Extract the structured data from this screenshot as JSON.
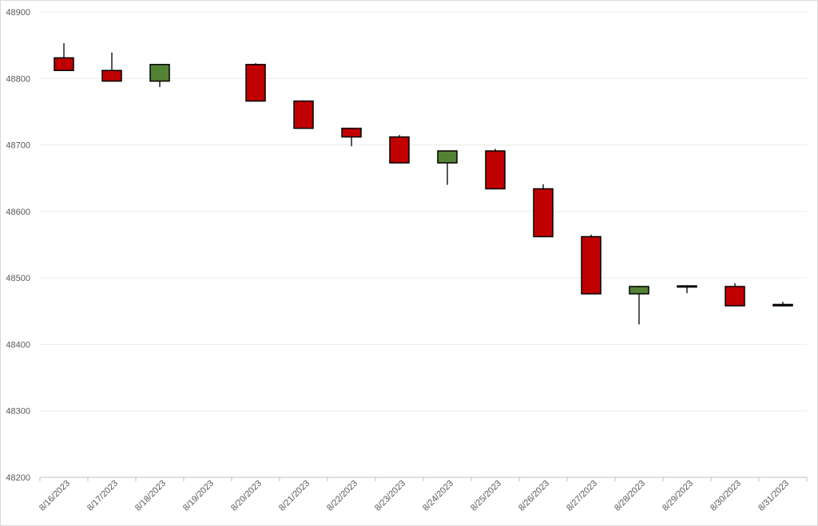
{
  "chart_data": {
    "type": "candlestick",
    "x": [
      "8/16/2023",
      "8/17/2023",
      "8/18/2023",
      "8/19/2023",
      "8/20/2023",
      "8/21/2023",
      "8/22/2023",
      "8/23/2023",
      "8/24/2023",
      "8/25/2023",
      "8/26/2023",
      "8/27/2023",
      "8/28/2023",
      "8/29/2023",
      "8/30/2023",
      "8/31/2023"
    ],
    "ohlc": [
      {
        "date": "8/16/2023",
        "open": 48831,
        "high": 48853,
        "low": 48812,
        "close": 48812
      },
      {
        "date": "8/17/2023",
        "open": 48812,
        "high": 48839,
        "low": 48795,
        "close": 48796
      },
      {
        "date": "8/18/2023",
        "open": 48796,
        "high": 48821,
        "low": 48787,
        "close": 48821
      },
      null,
      {
        "date": "8/20/2023",
        "open": 48821,
        "high": 48823,
        "low": 48765,
        "close": 48766
      },
      {
        "date": "8/21/2023",
        "open": 48766,
        "high": 48767,
        "low": 48725,
        "close": 48725
      },
      {
        "date": "8/22/2023",
        "open": 48725,
        "high": 48726,
        "low": 48698,
        "close": 48712
      },
      {
        "date": "8/23/2023",
        "open": 48712,
        "high": 48715,
        "low": 48673,
        "close": 48673
      },
      {
        "date": "8/24/2023",
        "open": 48673,
        "high": 48691,
        "low": 48640,
        "close": 48691
      },
      {
        "date": "8/25/2023",
        "open": 48691,
        "high": 48694,
        "low": 48634,
        "close": 48634
      },
      {
        "date": "8/26/2023",
        "open": 48634,
        "high": 48641,
        "low": 48562,
        "close": 48562
      },
      {
        "date": "8/27/2023",
        "open": 48562,
        "high": 48565,
        "low": 48475,
        "close": 48476
      },
      {
        "date": "8/28/2023",
        "open": 48476,
        "high": 48488,
        "low": 48430,
        "close": 48487
      },
      {
        "date": "8/29/2023",
        "open": 48488,
        "high": 48489,
        "low": 48477,
        "close": 48487
      },
      {
        "date": "8/30/2023",
        "open": 48487,
        "high": 48492,
        "low": 48457,
        "close": 48458
      },
      {
        "date": "8/31/2023",
        "open": 48460,
        "high": 48464,
        "low": 48457,
        "close": 48458
      }
    ],
    "y_ticks": [
      "48200",
      "48300",
      "48400",
      "48500",
      "48600",
      "48700",
      "48800",
      "48900"
    ],
    "ylim": [
      48200,
      48900
    ],
    "grid": true,
    "colors": {
      "up": "#548235",
      "down": "#c00000",
      "outline": "#000000",
      "wick": "#595959",
      "gridline": "#ececec",
      "axis": "#bfbfbf"
    }
  }
}
